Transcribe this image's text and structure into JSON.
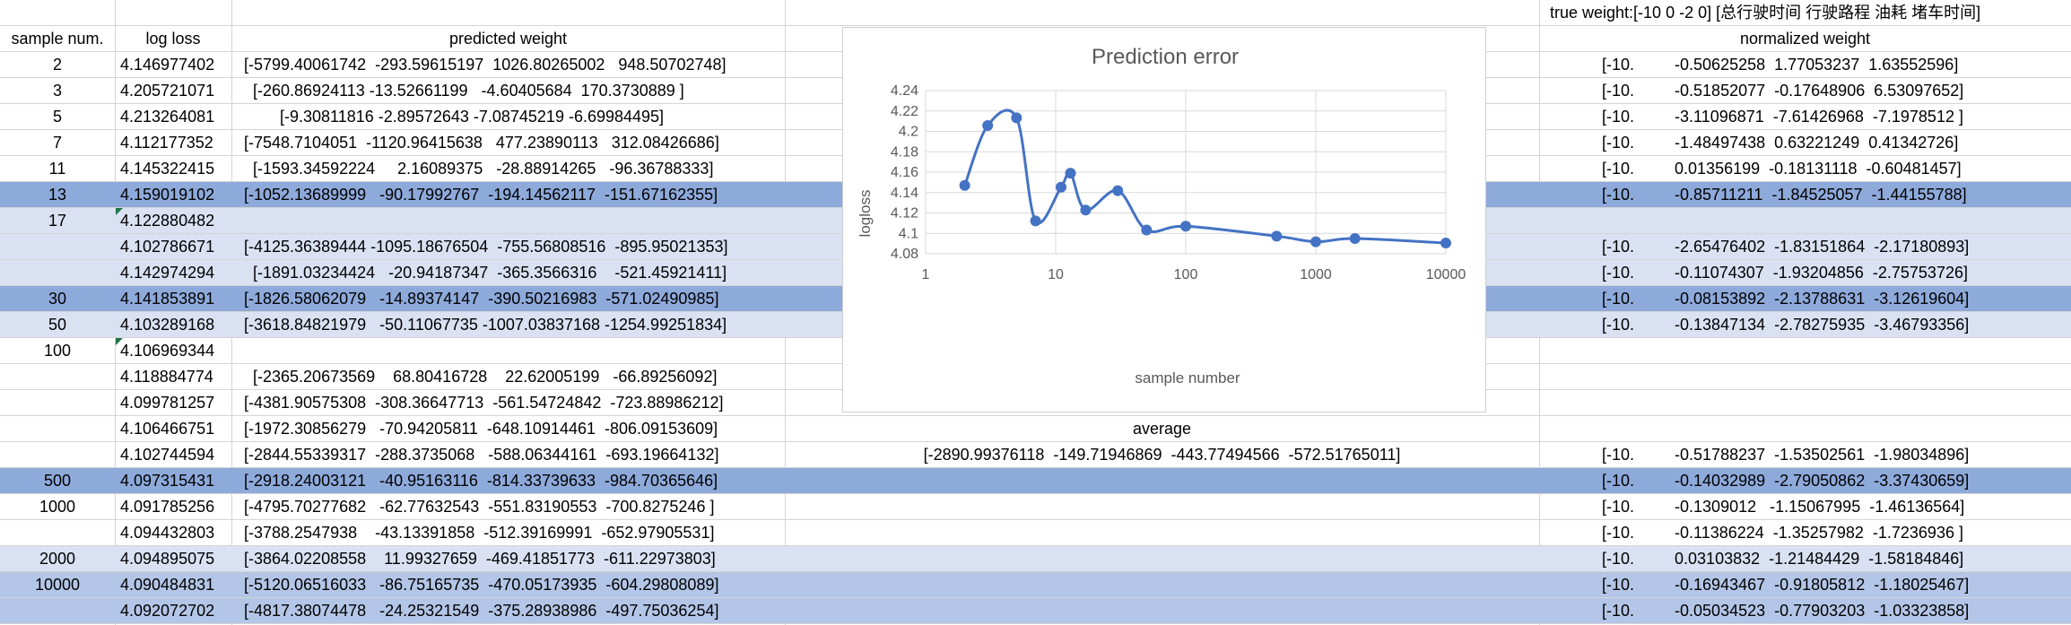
{
  "sheet": {
    "true_weight_label": "true weight:[-10 0 -2 0] [总行驶时间 行驶路程 油耗 堵车时间]",
    "headers": {
      "sample": "sample num.",
      "loss": "log loss",
      "predicted": "predicted weight",
      "normalized": "normalized weight"
    },
    "average_label": "average",
    "average_value": "[-2890.99376118  -149.71946869  -443.77494566  -572.51765011]",
    "average_normalized": "[-10.         -0.51788237  -1.53502561  -1.98034896]",
    "rows": [
      {
        "sample": "2",
        "loss": "4.146977402",
        "pred": "[-5799.40061742  -293.59615197  1026.80265002   948.50702748]",
        "norm": "[-10.         -0.50625258  1.77053237  1.63552596]",
        "hl": ""
      },
      {
        "sample": "3",
        "loss": "4.205721071",
        "pred": "  [-260.86924113 -13.52661199   -4.60405684  170.3730889 ]",
        "norm": "[-10.         -0.51852077  -0.17648906  6.53097652]",
        "hl": ""
      },
      {
        "sample": "5",
        "loss": "4.213264081",
        "pred": "        [-9.30811816 -2.89572643 -7.08745219 -6.69984495]",
        "norm": "[-10.         -3.11096871  -7.61426968  -7.1978512 ]",
        "hl": ""
      },
      {
        "sample": "7",
        "loss": "4.112177352",
        "pred": "[-7548.7104051  -1120.96415638   477.23890113   312.08426686]",
        "norm": "[-10.         -1.48497438  0.63221249  0.41342726]",
        "hl": ""
      },
      {
        "sample": "11",
        "loss": "4.145322415",
        "pred": "  [-1593.34592224     2.16089375   -28.88914265   -96.36788333]",
        "norm": "[-10.         0.01356199  -0.18131118  -0.60481457]",
        "hl": ""
      },
      {
        "sample": "13",
        "loss": "4.159019102",
        "pred": "[-1052.13689999   -90.17992767  -194.14562117  -151.67162355]",
        "norm": "[-10.         -0.85711211  -1.84525057  -1.44155788]",
        "hl": "dark"
      },
      {
        "sample": "17",
        "loss": "4.122880482",
        "pred": "",
        "norm": "",
        "hl": "light",
        "mark": true
      },
      {
        "sample": "",
        "loss": "4.102786671",
        "pred": "[-4125.36389444 -1095.18676504  -755.56808516  -895.95021353]",
        "norm": "[-10.         -2.65476402  -1.83151864  -2.17180893]",
        "hl": "light"
      },
      {
        "sample": "",
        "loss": "4.142974294",
        "pred": "  [-1891.03234424   -20.94187347  -365.3566316    -521.45921411]",
        "norm": "[-10.         -0.11074307  -1.93204856  -2.75753726]",
        "hl": "light"
      },
      {
        "sample": "30",
        "loss": "4.141853891",
        "pred": "[-1826.58062079   -14.89374147  -390.50216983  -571.02490985]",
        "norm": "[-10.         -0.08153892  -2.13788631  -3.12619604]",
        "hl": "dark"
      },
      {
        "sample": "50",
        "loss": "4.103289168",
        "pred": "[-3618.84821979   -50.11067735 -1007.03837168 -1254.99251834]",
        "norm": "[-10.         -0.13847134  -2.78275935  -3.46793356]",
        "hl": "light"
      },
      {
        "sample": "100",
        "loss": "4.106969344",
        "pred": "",
        "norm": "",
        "hl": "",
        "mark": true
      },
      {
        "sample": "",
        "loss": "4.118884774",
        "pred": "  [-2365.20673569    68.80416728    22.62005199   -66.89256092]",
        "norm": "",
        "hl": ""
      },
      {
        "sample": "",
        "loss": "4.099781257",
        "pred": "[-4381.90575308  -308.36647713  -561.54724842  -723.88986212]",
        "norm": "",
        "hl": ""
      },
      {
        "sample": "",
        "loss": "4.106466751",
        "pred": "[-1972.30856279   -70.94205811  -648.10914461  -806.09153609]",
        "norm": "",
        "hl": ""
      },
      {
        "sample": "",
        "loss": "4.102744594",
        "pred": "[-2844.55339317  -288.3735068   -588.06344161  -693.19664132]",
        "norm": "",
        "hl": "",
        "avg": true
      },
      {
        "sample": "500",
        "loss": "4.097315431",
        "pred": "[-2918.24003121   -40.95163116  -814.33739633  -984.70365646]",
        "norm": "[-10.         -0.14032989  -2.79050862  -3.37430659]",
        "hl": "dark"
      },
      {
        "sample": "1000",
        "loss": "4.091785256",
        "pred": "[-4795.70277682   -62.77632543  -551.83190553  -700.8275246 ]",
        "norm": "[-10.         -0.1309012   -1.15067995  -1.46136564]",
        "hl": ""
      },
      {
        "sample": "",
        "loss": "4.094432803",
        "pred": "[-3788.2547938    -43.13391858  -512.39169991  -652.97905531]",
        "norm": "[-10.         -0.11386224  -1.35257982  -1.7236936 ]",
        "hl": ""
      },
      {
        "sample": "2000",
        "loss": "4.094895075",
        "pred": "[-3864.02208558    11.99327659  -469.41851773  -611.22973803]",
        "norm": "[-10.         0.03103832  -1.21484429  -1.58184846]",
        "hl": "light"
      },
      {
        "sample": "10000",
        "loss": "4.090484831",
        "pred": "[-5120.06516033   -86.75165735  -470.05173935  -604.29808089]",
        "norm": "[-10.         -0.16943467  -0.91805812  -1.18025467]",
        "hl": "mid"
      },
      {
        "sample": "",
        "loss": "4.092072702",
        "pred": "[-4817.38074478   -24.25321549  -375.28938986  -497.75036254]",
        "norm": "[-10.         -0.05034523  -0.77903203  -1.03323858]",
        "hl": "mid"
      }
    ]
  },
  "chart_data": {
    "type": "scatter",
    "title": "Prediction error",
    "xlabel": "sample number",
    "ylabel": "logloss",
    "xscale": "log",
    "xlim": [
      1,
      10000
    ],
    "ylim": [
      4.08,
      4.24
    ],
    "x_ticks": [
      "1",
      "10",
      "100",
      "1000",
      "10000"
    ],
    "y_ticks": [
      "4.08",
      "4.1",
      "4.12",
      "4.14",
      "4.16",
      "4.18",
      "4.2",
      "4.22",
      "4.24"
    ],
    "grid": true,
    "line_style": "smooth",
    "series_color": "#4472c4",
    "x": [
      2,
      3,
      5,
      7,
      11,
      13,
      17,
      30,
      50,
      100,
      500,
      1000,
      2000,
      10000
    ],
    "y": [
      4.147,
      4.2057,
      4.2133,
      4.1122,
      4.1453,
      4.159,
      4.1229,
      4.1419,
      4.1033,
      4.107,
      4.0973,
      4.0918,
      4.0949,
      4.0905
    ]
  }
}
